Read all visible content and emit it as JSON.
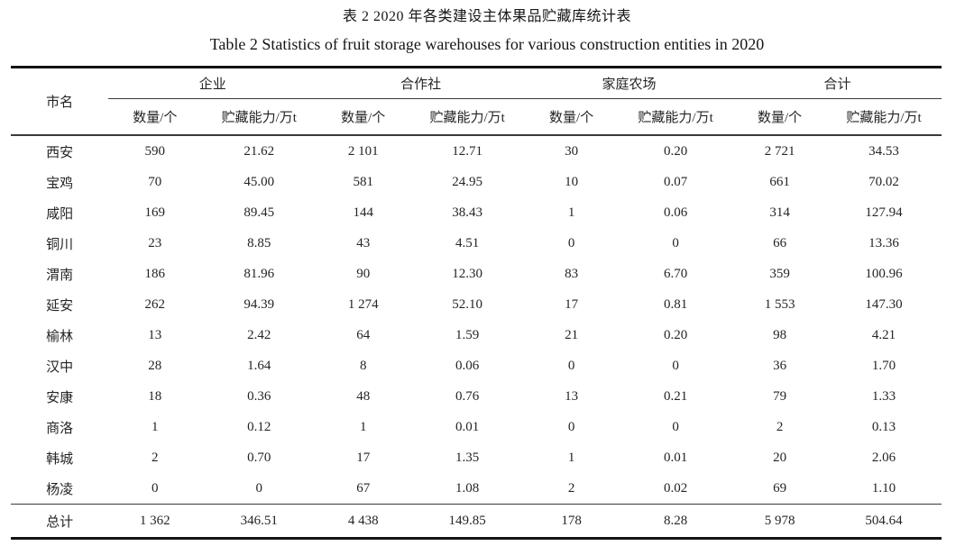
{
  "titles": {
    "cn": "表 2 2020 年各类建设主体果品贮藏库统计表",
    "en": "Table 2 Statistics of fruit storage warehouses for various construction entities in 2020"
  },
  "table": {
    "corner_header": "市名",
    "groups": [
      {
        "label": "企业"
      },
      {
        "label": "合作社"
      },
      {
        "label": "家庭农场"
      },
      {
        "label": "合计"
      }
    ],
    "sub_headers": [
      "数量/个",
      "贮藏能力/万t"
    ],
    "rows": [
      {
        "city": "西安",
        "values": [
          "590",
          "21.62",
          "2 101",
          "12.71",
          "30",
          "0.20",
          "2 721",
          "34.53"
        ]
      },
      {
        "city": "宝鸡",
        "values": [
          "70",
          "45.00",
          "581",
          "24.95",
          "10",
          "0.07",
          "661",
          "70.02"
        ]
      },
      {
        "city": "咸阳",
        "values": [
          "169",
          "89.45",
          "144",
          "38.43",
          "1",
          "0.06",
          "314",
          "127.94"
        ]
      },
      {
        "city": "铜川",
        "values": [
          "23",
          "8.85",
          "43",
          "4.51",
          "0",
          "0",
          "66",
          "13.36"
        ]
      },
      {
        "city": "渭南",
        "values": [
          "186",
          "81.96",
          "90",
          "12.30",
          "83",
          "6.70",
          "359",
          "100.96"
        ]
      },
      {
        "city": "延安",
        "values": [
          "262",
          "94.39",
          "1 274",
          "52.10",
          "17",
          "0.81",
          "1 553",
          "147.30"
        ]
      },
      {
        "city": "榆林",
        "values": [
          "13",
          "2.42",
          "64",
          "1.59",
          "21",
          "0.20",
          "98",
          "4.21"
        ]
      },
      {
        "city": "汉中",
        "values": [
          "28",
          "1.64",
          "8",
          "0.06",
          "0",
          "0",
          "36",
          "1.70"
        ]
      },
      {
        "city": "安康",
        "values": [
          "18",
          "0.36",
          "48",
          "0.76",
          "13",
          "0.21",
          "79",
          "1.33"
        ]
      },
      {
        "city": "商洛",
        "values": [
          "1",
          "0.12",
          "1",
          "0.01",
          "0",
          "0",
          "2",
          "0.13"
        ]
      },
      {
        "city": "韩城",
        "values": [
          "2",
          "0.70",
          "17",
          "1.35",
          "1",
          "0.01",
          "20",
          "2.06"
        ]
      },
      {
        "city": "杨凌",
        "values": [
          "0",
          "0",
          "67",
          "1.08",
          "2",
          "0.02",
          "69",
          "1.10"
        ]
      }
    ],
    "total_row": {
      "city": "总计",
      "values": [
        "1 362",
        "346.51",
        "4 438",
        "149.85",
        "178",
        "8.28",
        "5 978",
        "504.64"
      ]
    }
  },
  "colors": {
    "rule_thick": "#141414",
    "rule_thin": "#3a3a3a",
    "text": "#1f1f1f"
  }
}
